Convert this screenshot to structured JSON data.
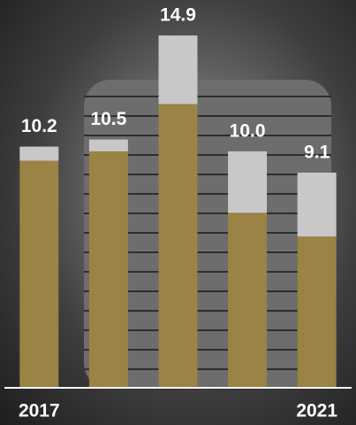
{
  "chart_data": {
    "type": "stacked_bar",
    "categories": [
      "2017",
      null,
      null,
      null,
      "2021"
    ],
    "series": [
      {
        "color": "#9b8245",
        "values": [
          9.6,
          10.0,
          12.0,
          7.4,
          6.4
        ]
      },
      {
        "color": "#c8c8c8",
        "values": [
          0.6,
          0.5,
          2.9,
          2.6,
          2.7
        ]
      }
    ],
    "totals": [
      10.2,
      10.5,
      14.9,
      10,
      9.1
    ],
    "total_labels": [
      "10.2",
      "10.5",
      "14.9",
      "10.0",
      "9.1"
    ],
    "ylim": [
      0,
      16.4
    ]
  }
}
